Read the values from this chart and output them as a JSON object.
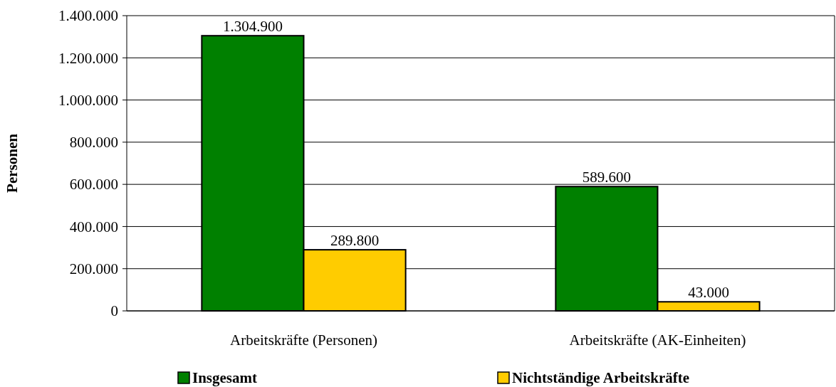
{
  "chart_data": {
    "type": "bar",
    "ylabel": "Personen",
    "categories": [
      "Arbeitskräfte (Personen)",
      "Arbeitskräfte (AK-Einheiten)"
    ],
    "series": [
      {
        "name": "Insgesamt",
        "color": "#008000",
        "values": [
          1304900,
          589600
        ],
        "value_labels": [
          "1.304.900",
          "589.600"
        ]
      },
      {
        "name": "Nichtständige Arbeitskräfte",
        "color": "#ffcc00",
        "values": [
          289800,
          43000
        ],
        "value_labels": [
          "289.800",
          "43.000"
        ]
      }
    ],
    "ylim": [
      0,
      1400000
    ],
    "yticks": [
      {
        "value": 0,
        "label": "0"
      },
      {
        "value": 200000,
        "label": "200.000"
      },
      {
        "value": 400000,
        "label": "400.000"
      },
      {
        "value": 600000,
        "label": "600.000"
      },
      {
        "value": 800000,
        "label": "800.000"
      },
      {
        "value": 1000000,
        "label": "1.000.000"
      },
      {
        "value": 1200000,
        "label": "1.200.000"
      },
      {
        "value": 1400000,
        "label": "1.400.000"
      }
    ],
    "grid": "y",
    "legend": "bottom"
  }
}
